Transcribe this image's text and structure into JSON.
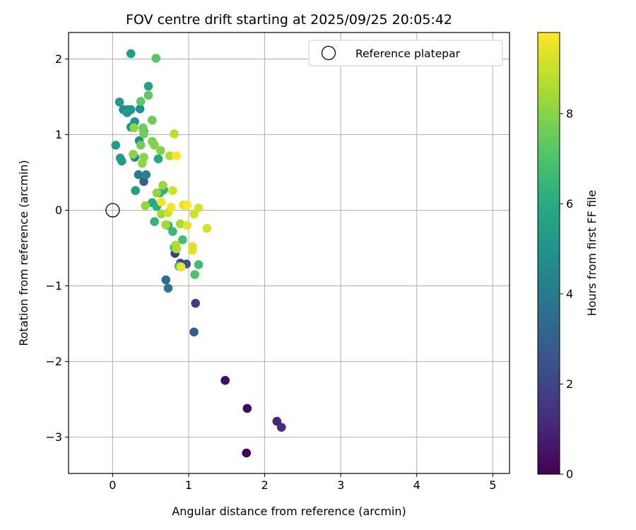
{
  "chart_data": {
    "type": "scatter",
    "title": "FOV centre drift starting at 2025/09/25 20:05:42",
    "xlabel": "Angular distance from reference (arcmin)",
    "ylabel": "Rotation from reference (arcmin)",
    "xlim": [
      -0.58,
      5.22
    ],
    "ylim": [
      -3.48,
      2.35
    ],
    "xticks": [
      0,
      1,
      2,
      3,
      4,
      5
    ],
    "yticks": [
      -3,
      -2,
      -1,
      0,
      1,
      2
    ],
    "xtick_labels": [
      "0",
      "1",
      "2",
      "3",
      "4",
      "5"
    ],
    "ytick_labels": [
      "−3",
      "−2",
      "−1",
      "0",
      "1",
      "2"
    ],
    "grid": true,
    "legend": {
      "position": "top-right",
      "label": "Reference platepar"
    },
    "reference_point": {
      "x": 0,
      "y": 0
    },
    "colorbar": {
      "label": "Hours from first FF file",
      "colormap": "viridis",
      "range": [
        0,
        9.8
      ],
      "ticks": [
        0,
        2,
        4,
        6,
        8
      ],
      "tick_labels": [
        "0",
        "2",
        "4",
        "6",
        "8"
      ],
      "colormap_stops": [
        "#440154",
        "#472d7b",
        "#3b528b",
        "#2c728e",
        "#21918c",
        "#28ae80",
        "#5ec962",
        "#addc30",
        "#fde725"
      ]
    },
    "points": [
      {
        "x": 1.76,
        "y": -3.21,
        "h": 0.1
      },
      {
        "x": 1.77,
        "y": -2.62,
        "h": 0.2
      },
      {
        "x": 1.48,
        "y": -2.25,
        "h": 0.3
      },
      {
        "x": 2.16,
        "y": -2.79,
        "h": 1.0
      },
      {
        "x": 2.22,
        "y": -2.87,
        "h": 1.2
      },
      {
        "x": 1.09,
        "y": -1.23,
        "h": 1.7
      },
      {
        "x": 0.82,
        "y": -0.57,
        "h": 1.8
      },
      {
        "x": 0.89,
        "y": -0.7,
        "h": 2.2
      },
      {
        "x": 0.97,
        "y": -0.71,
        "h": 2.4
      },
      {
        "x": 1.07,
        "y": -1.61,
        "h": 2.8
      },
      {
        "x": 0.41,
        "y": 0.38,
        "h": 3.0
      },
      {
        "x": 0.7,
        "y": -0.92,
        "h": 3.5
      },
      {
        "x": 0.73,
        "y": -1.03,
        "h": 3.8
      },
      {
        "x": 0.34,
        "y": 0.47,
        "h": 4.0
      },
      {
        "x": 0.44,
        "y": 0.47,
        "h": 4.3
      },
      {
        "x": 0.29,
        "y": 0.7,
        "h": 4.5
      },
      {
        "x": 0.2,
        "y": 1.33,
        "h": 4.5
      },
      {
        "x": 0.14,
        "y": 1.33,
        "h": 4.7
      },
      {
        "x": 0.35,
        "y": 0.92,
        "h": 4.8
      },
      {
        "x": 0.24,
        "y": 1.1,
        "h": 4.9
      },
      {
        "x": 0.29,
        "y": 1.17,
        "h": 5.0
      },
      {
        "x": 0.36,
        "y": 1.34,
        "h": 5.0
      },
      {
        "x": 0.24,
        "y": 1.33,
        "h": 5.1
      },
      {
        "x": 0.19,
        "y": 1.29,
        "h": 5.2
      },
      {
        "x": 0.09,
        "y": 1.43,
        "h": 5.2
      },
      {
        "x": 0.12,
        "y": 0.65,
        "h": 5.3
      },
      {
        "x": 0.1,
        "y": 0.69,
        "h": 5.3
      },
      {
        "x": 0.04,
        "y": 0.86,
        "h": 5.4
      },
      {
        "x": 0.24,
        "y": 2.07,
        "h": 5.5
      },
      {
        "x": 0.3,
        "y": 0.26,
        "h": 5.5
      },
      {
        "x": 0.41,
        "y": 1.04,
        "h": 5.6
      },
      {
        "x": 0.47,
        "y": 1.64,
        "h": 5.6
      },
      {
        "x": 0.6,
        "y": 0.68,
        "h": 5.8
      },
      {
        "x": 0.52,
        "y": 0.1,
        "h": 5.9
      },
      {
        "x": 0.58,
        "y": 0.05,
        "h": 6.1
      },
      {
        "x": 0.62,
        "y": 0.23,
        "h": 6.2
      },
      {
        "x": 0.67,
        "y": 0.27,
        "h": 6.2
      },
      {
        "x": 0.55,
        "y": -0.15,
        "h": 6.4
      },
      {
        "x": 0.73,
        "y": -0.2,
        "h": 6.5
      },
      {
        "x": 0.79,
        "y": -0.28,
        "h": 6.6
      },
      {
        "x": 0.81,
        "y": -0.49,
        "h": 6.6
      },
      {
        "x": 1.13,
        "y": -0.72,
        "h": 6.7
      },
      {
        "x": 0.92,
        "y": -0.39,
        "h": 6.8
      },
      {
        "x": 1.08,
        "y": -0.85,
        "h": 7.0
      },
      {
        "x": 0.87,
        "y": -0.74,
        "h": 7.1
      },
      {
        "x": 0.57,
        "y": 2.01,
        "h": 7.2
      },
      {
        "x": 0.47,
        "y": 1.52,
        "h": 7.3
      },
      {
        "x": 0.37,
        "y": 1.44,
        "h": 7.3
      },
      {
        "x": 0.52,
        "y": 1.19,
        "h": 7.5
      },
      {
        "x": 0.4,
        "y": 1.09,
        "h": 7.6
      },
      {
        "x": 0.41,
        "y": 1.01,
        "h": 7.6
      },
      {
        "x": 0.37,
        "y": 0.86,
        "h": 7.7
      },
      {
        "x": 0.52,
        "y": 0.91,
        "h": 7.8
      },
      {
        "x": 0.55,
        "y": 0.86,
        "h": 7.9
      },
      {
        "x": 0.63,
        "y": 0.79,
        "h": 7.9
      },
      {
        "x": 0.27,
        "y": 0.74,
        "h": 8.0
      },
      {
        "x": 0.41,
        "y": 0.7,
        "h": 8.0
      },
      {
        "x": 0.39,
        "y": 0.62,
        "h": 8.1
      },
      {
        "x": 0.28,
        "y": 1.09,
        "h": 8.1
      },
      {
        "x": 0.43,
        "y": 0.06,
        "h": 8.2
      },
      {
        "x": 0.58,
        "y": 0.23,
        "h": 8.2
      },
      {
        "x": 0.66,
        "y": 0.33,
        "h": 8.3
      },
      {
        "x": 0.64,
        "y": -0.05,
        "h": 8.4
      },
      {
        "x": 0.7,
        "y": -0.19,
        "h": 8.4
      },
      {
        "x": 0.89,
        "y": -0.18,
        "h": 8.5
      },
      {
        "x": 0.83,
        "y": -0.46,
        "h": 8.6
      },
      {
        "x": 0.84,
        "y": -0.51,
        "h": 8.6
      },
      {
        "x": 0.75,
        "y": 0.72,
        "h": 8.7
      },
      {
        "x": 0.81,
        "y": 1.01,
        "h": 8.8
      },
      {
        "x": 0.73,
        "y": -0.03,
        "h": 9.0
      },
      {
        "x": 0.79,
        "y": 0.26,
        "h": 9.1
      },
      {
        "x": 1.07,
        "y": -0.05,
        "h": 9.1
      },
      {
        "x": 1.13,
        "y": 0.03,
        "h": 9.2
      },
      {
        "x": 1.24,
        "y": -0.24,
        "h": 9.2
      },
      {
        "x": 1.05,
        "y": -0.48,
        "h": 9.3
      },
      {
        "x": 1.05,
        "y": -0.53,
        "h": 9.3
      },
      {
        "x": 0.93,
        "y": 0.07,
        "h": 9.4
      },
      {
        "x": 0.98,
        "y": -0.2,
        "h": 9.4
      },
      {
        "x": 0.9,
        "y": -0.75,
        "h": 9.5
      },
      {
        "x": 0.64,
        "y": 0.11,
        "h": 9.6
      },
      {
        "x": 0.77,
        "y": 0.04,
        "h": 9.6
      },
      {
        "x": 0.84,
        "y": 0.72,
        "h": 9.8
      },
      {
        "x": 0.98,
        "y": 0.07,
        "h": 9.8
      }
    ]
  }
}
